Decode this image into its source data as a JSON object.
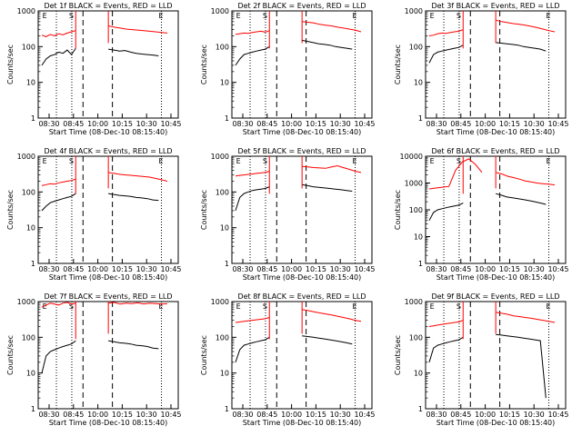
{
  "window": {
    "size_note": "9 detector panels, 3x3 grid"
  },
  "chart_data": [
    {
      "type": "line",
      "title": "Det 1f BLACK = Events, RED = LLD",
      "xlabel": "Start Time (08-Dec-10 08:15:40)",
      "ylabel": "Counts/sec",
      "x_ticks": [
        "08:30",
        "08:45",
        "10:00",
        "10:15",
        "10:30",
        "10:45"
      ],
      "y_ticks": [
        "1",
        "10",
        "100",
        "1000"
      ],
      "ylim": [
        1,
        1000
      ],
      "y_scale": "log",
      "markers": [
        "E",
        "S",
        "E"
      ],
      "series": [
        {
          "color": "#ff0000",
          "segments": [
            {
              "x0": 0.0,
              "x1": 0.27,
              "v": [
                210,
                190,
                220,
                200,
                230,
                215,
                240,
                260,
                280
              ]
            },
            {
              "x0": 0.53,
              "x1": 1.0,
              "v": [
                380,
                350,
                330,
                310,
                300,
                290,
                280,
                270,
                260,
                250,
                240
              ]
            }
          ]
        },
        {
          "color": "#000000",
          "segments": [
            {
              "x0": 0.0,
              "x1": 0.27,
              "v": [
                30,
                45,
                55,
                60,
                70,
                65,
                80,
                60,
                90
              ]
            },
            {
              "x0": 0.53,
              "x1": 0.93,
              "v": [
                85,
                80,
                75,
                78,
                70,
                65,
                62,
                60,
                58,
                55
              ]
            }
          ]
        }
      ]
    },
    {
      "type": "line",
      "title": "Det 2f BLACK = Events, RED = LLD",
      "xlabel": "Start Time (08-Dec-10 08:15:40)",
      "ylabel": "Counts/sec",
      "x_ticks": [
        "08:30",
        "08:45",
        "10:00",
        "10:15",
        "10:30",
        "10:45"
      ],
      "y_ticks": [
        "1",
        "10",
        "100",
        "1000"
      ],
      "ylim": [
        1,
        1000
      ],
      "y_scale": "log",
      "markers": [
        "E",
        "S",
        "E"
      ],
      "series": [
        {
          "color": "#ff0000",
          "segments": [
            {
              "x0": 0.0,
              "x1": 0.27,
              "v": [
                220,
                230,
                240,
                235,
                250,
                260,
                270,
                255,
                280
              ]
            },
            {
              "x0": 0.53,
              "x1": 1.0,
              "v": [
                500,
                480,
                460,
                420,
                400,
                380,
                350,
                330,
                310,
                290,
                260
              ]
            }
          ]
        },
        {
          "color": "#000000",
          "segments": [
            {
              "x0": 0.0,
              "x1": 0.27,
              "v": [
                30,
                45,
                60,
                65,
                70,
                75,
                80,
                85,
                100
              ]
            },
            {
              "x0": 0.53,
              "x1": 0.93,
              "v": [
                150,
                140,
                130,
                120,
                115,
                110,
                100,
                95,
                90,
                85
              ]
            }
          ]
        }
      ]
    },
    {
      "type": "line",
      "title": "Det 3f BLACK = Events, RED = LLD",
      "xlabel": "Start Time (08-Dec-10 08:15:40)",
      "ylabel": "Counts/sec",
      "x_ticks": [
        "08:30",
        "08:45",
        "10:00",
        "10:15",
        "10:30",
        "10:45"
      ],
      "y_ticks": [
        "1",
        "10",
        "100",
        "1000"
      ],
      "ylim": [
        1,
        1000
      ],
      "y_scale": "log",
      "markers": [
        "E",
        "S",
        "E"
      ],
      "series": [
        {
          "color": "#ff0000",
          "segments": [
            {
              "x0": 0.0,
              "x1": 0.27,
              "v": [
                200,
                210,
                230,
                240,
                235,
                250,
                260,
                270,
                300
              ]
            },
            {
              "x0": 0.53,
              "x1": 1.0,
              "v": [
                550,
                500,
                470,
                440,
                420,
                400,
                370,
                340,
                310,
                280,
                260
              ]
            }
          ]
        },
        {
          "color": "#000000",
          "segments": [
            {
              "x0": 0.0,
              "x1": 0.27,
              "v": [
                35,
                60,
                70,
                75,
                80,
                85,
                90,
                95,
                110
              ]
            },
            {
              "x0": 0.53,
              "x1": 0.93,
              "v": [
                130,
                125,
                120,
                115,
                110,
                100,
                95,
                90,
                85,
                75
              ]
            }
          ]
        }
      ]
    },
    {
      "type": "line",
      "title": "Det 4f BLACK = Events, RED = LLD",
      "xlabel": "Start Time (08-Dec-10 08:15:40)",
      "ylabel": "Counts/sec",
      "x_ticks": [
        "08:30",
        "08:45",
        "10:00",
        "10:15",
        "10:30",
        "10:45"
      ],
      "y_ticks": [
        "1",
        "10",
        "100",
        "1000"
      ],
      "ylim": [
        1,
        1000
      ],
      "y_scale": "log",
      "markers": [
        "E",
        "S",
        "E"
      ],
      "series": [
        {
          "color": "#ff0000",
          "segments": [
            {
              "x0": 0.0,
              "x1": 0.27,
              "v": [
                150,
                160,
                170,
                165,
                180,
                190,
                200,
                210,
                230
              ]
            },
            {
              "x0": 0.53,
              "x1": 1.0,
              "v": [
                350,
                330,
                310,
                300,
                290,
                280,
                270,
                260,
                240,
                220,
                200
              ]
            }
          ]
        },
        {
          "color": "#000000",
          "segments": [
            {
              "x0": 0.0,
              "x1": 0.27,
              "v": [
                30,
                40,
                50,
                55,
                60,
                65,
                70,
                75,
                90
              ]
            },
            {
              "x0": 0.53,
              "x1": 0.93,
              "v": [
                90,
                85,
                80,
                78,
                75,
                70,
                68,
                65,
                60,
                58
              ]
            }
          ]
        }
      ]
    },
    {
      "type": "line",
      "title": "Det 5f BLACK = Events, RED = LLD",
      "xlabel": "Start Time (08-Dec-10 08:15:40)",
      "ylabel": "Counts/sec",
      "x_ticks": [
        "08:30",
        "08:45",
        "10:00",
        "10:15",
        "10:30",
        "10:45"
      ],
      "y_ticks": [
        "1",
        "10",
        "100",
        "1000"
      ],
      "ylim": [
        1,
        1000
      ],
      "y_scale": "log",
      "markers": [
        "E",
        "S",
        "E"
      ],
      "series": [
        {
          "color": "#ff0000",
          "segments": [
            {
              "x0": 0.0,
              "x1": 0.27,
              "v": [
                280,
                290,
                300,
                310,
                320,
                330,
                340,
                350,
                380
              ]
            },
            {
              "x0": 0.53,
              "x1": 1.0,
              "v": [
                520,
                500,
                480,
                470,
                460,
                500,
                540,
                480,
                430,
                380,
                350
              ]
            }
          ]
        },
        {
          "color": "#000000",
          "segments": [
            {
              "x0": 0.0,
              "x1": 0.27,
              "v": [
                30,
                70,
                90,
                100,
                110,
                115,
                120,
                125,
                140
              ]
            },
            {
              "x0": 0.53,
              "x1": 0.93,
              "v": [
                160,
                150,
                140,
                135,
                130,
                125,
                120,
                115,
                110,
                105
              ]
            }
          ]
        }
      ]
    },
    {
      "type": "line",
      "title": "Det 6f BLACK = Events, RED = LLD",
      "xlabel": "Start Time (08-Dec-10 08:15:40)",
      "ylabel": "Counts/sec",
      "x_ticks": [
        "08:30",
        "08:45",
        "10:00",
        "10:15",
        "10:30",
        "10:45"
      ],
      "y_ticks": [
        "1",
        "10",
        "100",
        "1000",
        "10000"
      ],
      "ylim": [
        1,
        10000
      ],
      "y_scale": "log",
      "markers": [
        "E",
        "S",
        "E"
      ],
      "series": [
        {
          "color": "#ff0000",
          "segments": [
            {
              "x0": 0.0,
              "x1": 0.42,
              "v": [
                600,
                650,
                700,
                750,
                3000,
                6000,
                8000,
                5000,
                2500
              ]
            },
            {
              "x0": 0.53,
              "x1": 1.0,
              "v": [
                2500,
                2200,
                1800,
                1600,
                1400,
                1200,
                1100,
                1000,
                950,
                900,
                850
              ]
            }
          ]
        },
        {
          "color": "#000000",
          "segments": [
            {
              "x0": 0.0,
              "x1": 0.27,
              "v": [
                40,
                80,
                100,
                110,
                120,
                130,
                140,
                150,
                180
              ]
            },
            {
              "x0": 0.53,
              "x1": 0.93,
              "v": [
                400,
                350,
                300,
                280,
                260,
                240,
                220,
                200,
                180,
                160
              ]
            }
          ]
        }
      ]
    },
    {
      "type": "line",
      "title": "Det 7f BLACK = Events, RED = LLD",
      "xlabel": "Start Time (08-Dec-10 08:15:40)",
      "ylabel": "Counts/sec",
      "x_ticks": [
        "08:30",
        "08:45",
        "10:00",
        "10:15",
        "10:30",
        "10:45"
      ],
      "y_ticks": [
        "1",
        "10",
        "100",
        "1000"
      ],
      "ylim": [
        1,
        1000
      ],
      "y_scale": "log",
      "markers": [
        "E",
        "S",
        "E"
      ],
      "series": [
        {
          "color": "#ff0000",
          "segments": [
            {
              "x0": 0.0,
              "x1": 0.27,
              "v": [
                700,
                800,
                900,
                850,
                800,
                900,
                950,
                850,
                900
              ]
            },
            {
              "x0": 0.53,
              "x1": 1.0,
              "v": [
                900,
                950,
                850,
                900,
                880,
                920,
                860,
                900,
                880,
                850,
                870
              ]
            }
          ]
        },
        {
          "color": "#000000",
          "segments": [
            {
              "x0": 0.0,
              "x1": 0.27,
              "v": [
                10,
                30,
                40,
                45,
                50,
                55,
                60,
                65,
                80
              ]
            },
            {
              "x0": 0.53,
              "x1": 0.93,
              "v": [
                80,
                75,
                70,
                68,
                65,
                60,
                58,
                55,
                50,
                48
              ]
            }
          ]
        }
      ]
    },
    {
      "type": "line",
      "title": "Det 8f BLACK = Events, RED = LLD",
      "xlabel": "Start Time (08-Dec-10 08:15:40)",
      "ylabel": "Counts/sec",
      "x_ticks": [
        "08:30",
        "08:45",
        "10:00",
        "10:15",
        "10:30",
        "10:45"
      ],
      "y_ticks": [
        "1",
        "10",
        "100",
        "1000"
      ],
      "ylim": [
        1,
        1000
      ],
      "y_scale": "log",
      "markers": [
        "E",
        "S",
        "E"
      ],
      "series": [
        {
          "color": "#ff0000",
          "segments": [
            {
              "x0": 0.0,
              "x1": 0.27,
              "v": [
                260,
                270,
                280,
                290,
                300,
                310,
                320,
                330,
                360
              ]
            },
            {
              "x0": 0.53,
              "x1": 1.0,
              "v": [
                600,
                560,
                520,
                480,
                450,
                420,
                390,
                360,
                330,
                300,
                280
              ]
            }
          ]
        },
        {
          "color": "#000000",
          "segments": [
            {
              "x0": 0.0,
              "x1": 0.27,
              "v": [
                20,
                45,
                60,
                65,
                70,
                75,
                80,
                85,
                100
              ]
            },
            {
              "x0": 0.53,
              "x1": 0.93,
              "v": [
                110,
                105,
                100,
                95,
                90,
                85,
                80,
                75,
                70,
                65
              ]
            }
          ]
        }
      ]
    },
    {
      "type": "line",
      "title": "Det 9f BLACK = Events, RED = LLD",
      "xlabel": "Start Time (08-Dec-10 08:15:40)",
      "ylabel": "Counts/sec",
      "x_ticks": [
        "08:30",
        "08:45",
        "10:00",
        "10:15",
        "10:30",
        "10:45"
      ],
      "y_ticks": [
        "1",
        "10",
        "100",
        "1000"
      ],
      "ylim": [
        1,
        1000
      ],
      "y_scale": "log",
      "markers": [
        "E",
        "S",
        "E"
      ],
      "series": [
        {
          "color": "#ff0000",
          "segments": [
            {
              "x0": 0.0,
              "x1": 0.27,
              "v": [
                200,
                210,
                220,
                230,
                240,
                250,
                260,
                270,
                300
              ]
            },
            {
              "x0": 0.53,
              "x1": 1.0,
              "v": [
                500,
                470,
                440,
                400,
                380,
                360,
                340,
                320,
                300,
                280,
                260
              ]
            }
          ]
        },
        {
          "color": "#000000",
          "segments": [
            {
              "x0": 0.0,
              "x1": 0.27,
              "v": [
                20,
                50,
                60,
                65,
                70,
                75,
                80,
                85,
                100
              ]
            },
            {
              "x0": 0.53,
              "x1": 0.93,
              "v": [
                120,
                115,
                110,
                105,
                100,
                95,
                90,
                85,
                80,
                2
              ]
            }
          ]
        }
      ]
    }
  ]
}
